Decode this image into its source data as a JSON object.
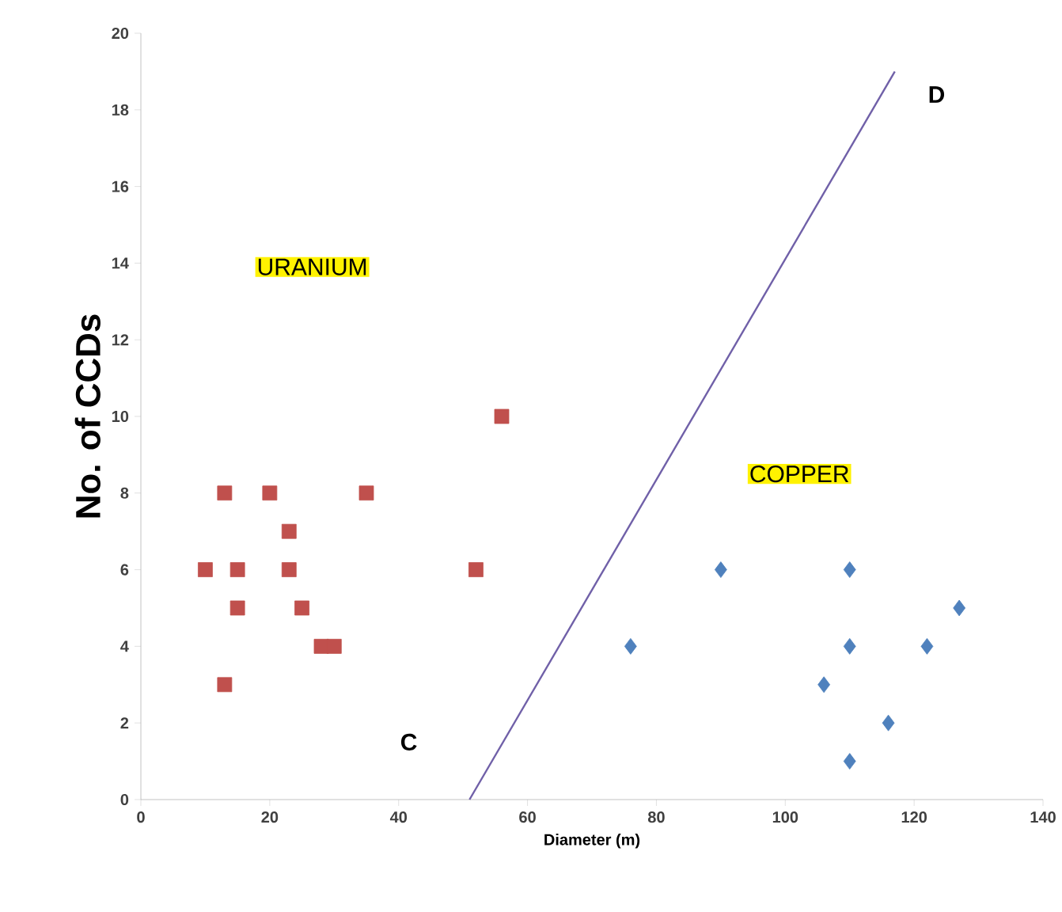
{
  "chart_data": {
    "type": "scatter",
    "xlabel": "Diameter (m)",
    "ylabel": "No. of CCDs",
    "xlim": [
      0,
      140
    ],
    "ylim": [
      0,
      20
    ],
    "xticks": [
      0,
      20,
      40,
      60,
      80,
      100,
      120,
      140
    ],
    "yticks": [
      0,
      2,
      4,
      6,
      8,
      10,
      12,
      14,
      16,
      18,
      20
    ],
    "series": [
      {
        "color": "#c0504d",
        "marker": "square",
        "x": [
          10,
          13,
          15,
          15,
          20,
          23,
          23,
          25,
          28,
          30,
          35,
          52,
          56,
          13
        ],
        "values": [
          6,
          8,
          6,
          5,
          8,
          7,
          6,
          5,
          4,
          4,
          8,
          6,
          10,
          3
        ]
      },
      {
        "color": "#4f81bd",
        "marker": "diamond",
        "x": [
          76,
          90,
          110,
          110,
          106,
          116,
          110,
          122,
          127
        ],
        "values": [
          4,
          6,
          6,
          4,
          3,
          2,
          1,
          4,
          5
        ]
      },
      {
        "type": "line",
        "color": "#7060a8",
        "marker": "none",
        "x": [
          51,
          117
        ],
        "values": [
          0,
          19
        ]
      }
    ],
    "annotations": [
      "URANIUM",
      "COPPER",
      "C",
      "D"
    ]
  }
}
